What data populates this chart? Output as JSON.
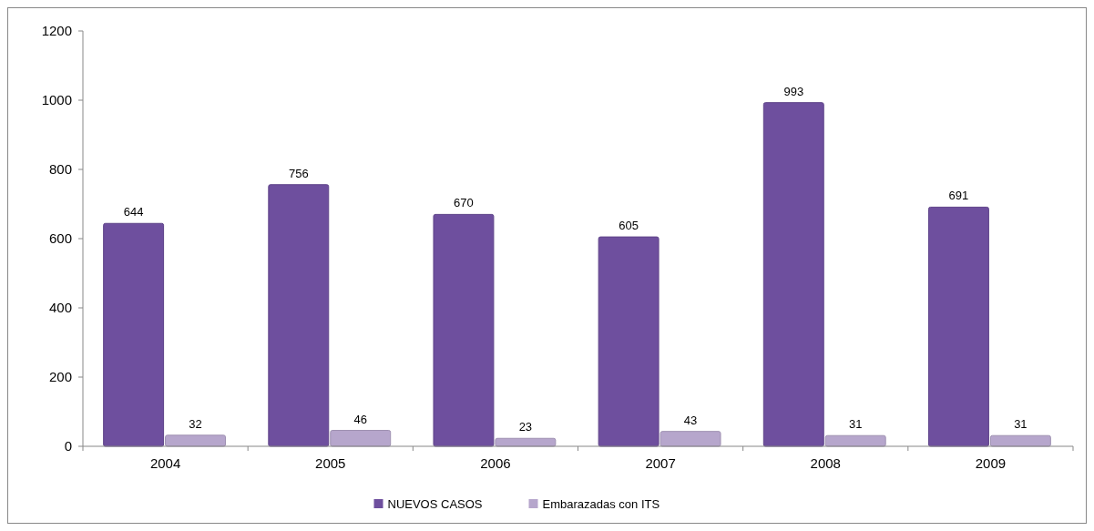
{
  "chart_data": {
    "type": "bar",
    "categories": [
      "2004",
      "2005",
      "2006",
      "2007",
      "2008",
      "2009"
    ],
    "series": [
      {
        "name": "NUEVOS CASOS",
        "color": "#6e4f9e",
        "values": [
          644,
          756,
          670,
          605,
          993,
          691
        ]
      },
      {
        "name": "Embarazadas con ITS",
        "color": "#b6a6cc",
        "values": [
          32,
          46,
          23,
          43,
          31,
          31
        ]
      }
    ],
    "ylim": [
      0,
      1200
    ],
    "yticks": [
      0,
      200,
      400,
      600,
      800,
      1000,
      1200
    ],
    "data_labels": true,
    "legend": "bottom",
    "grid": false
  }
}
